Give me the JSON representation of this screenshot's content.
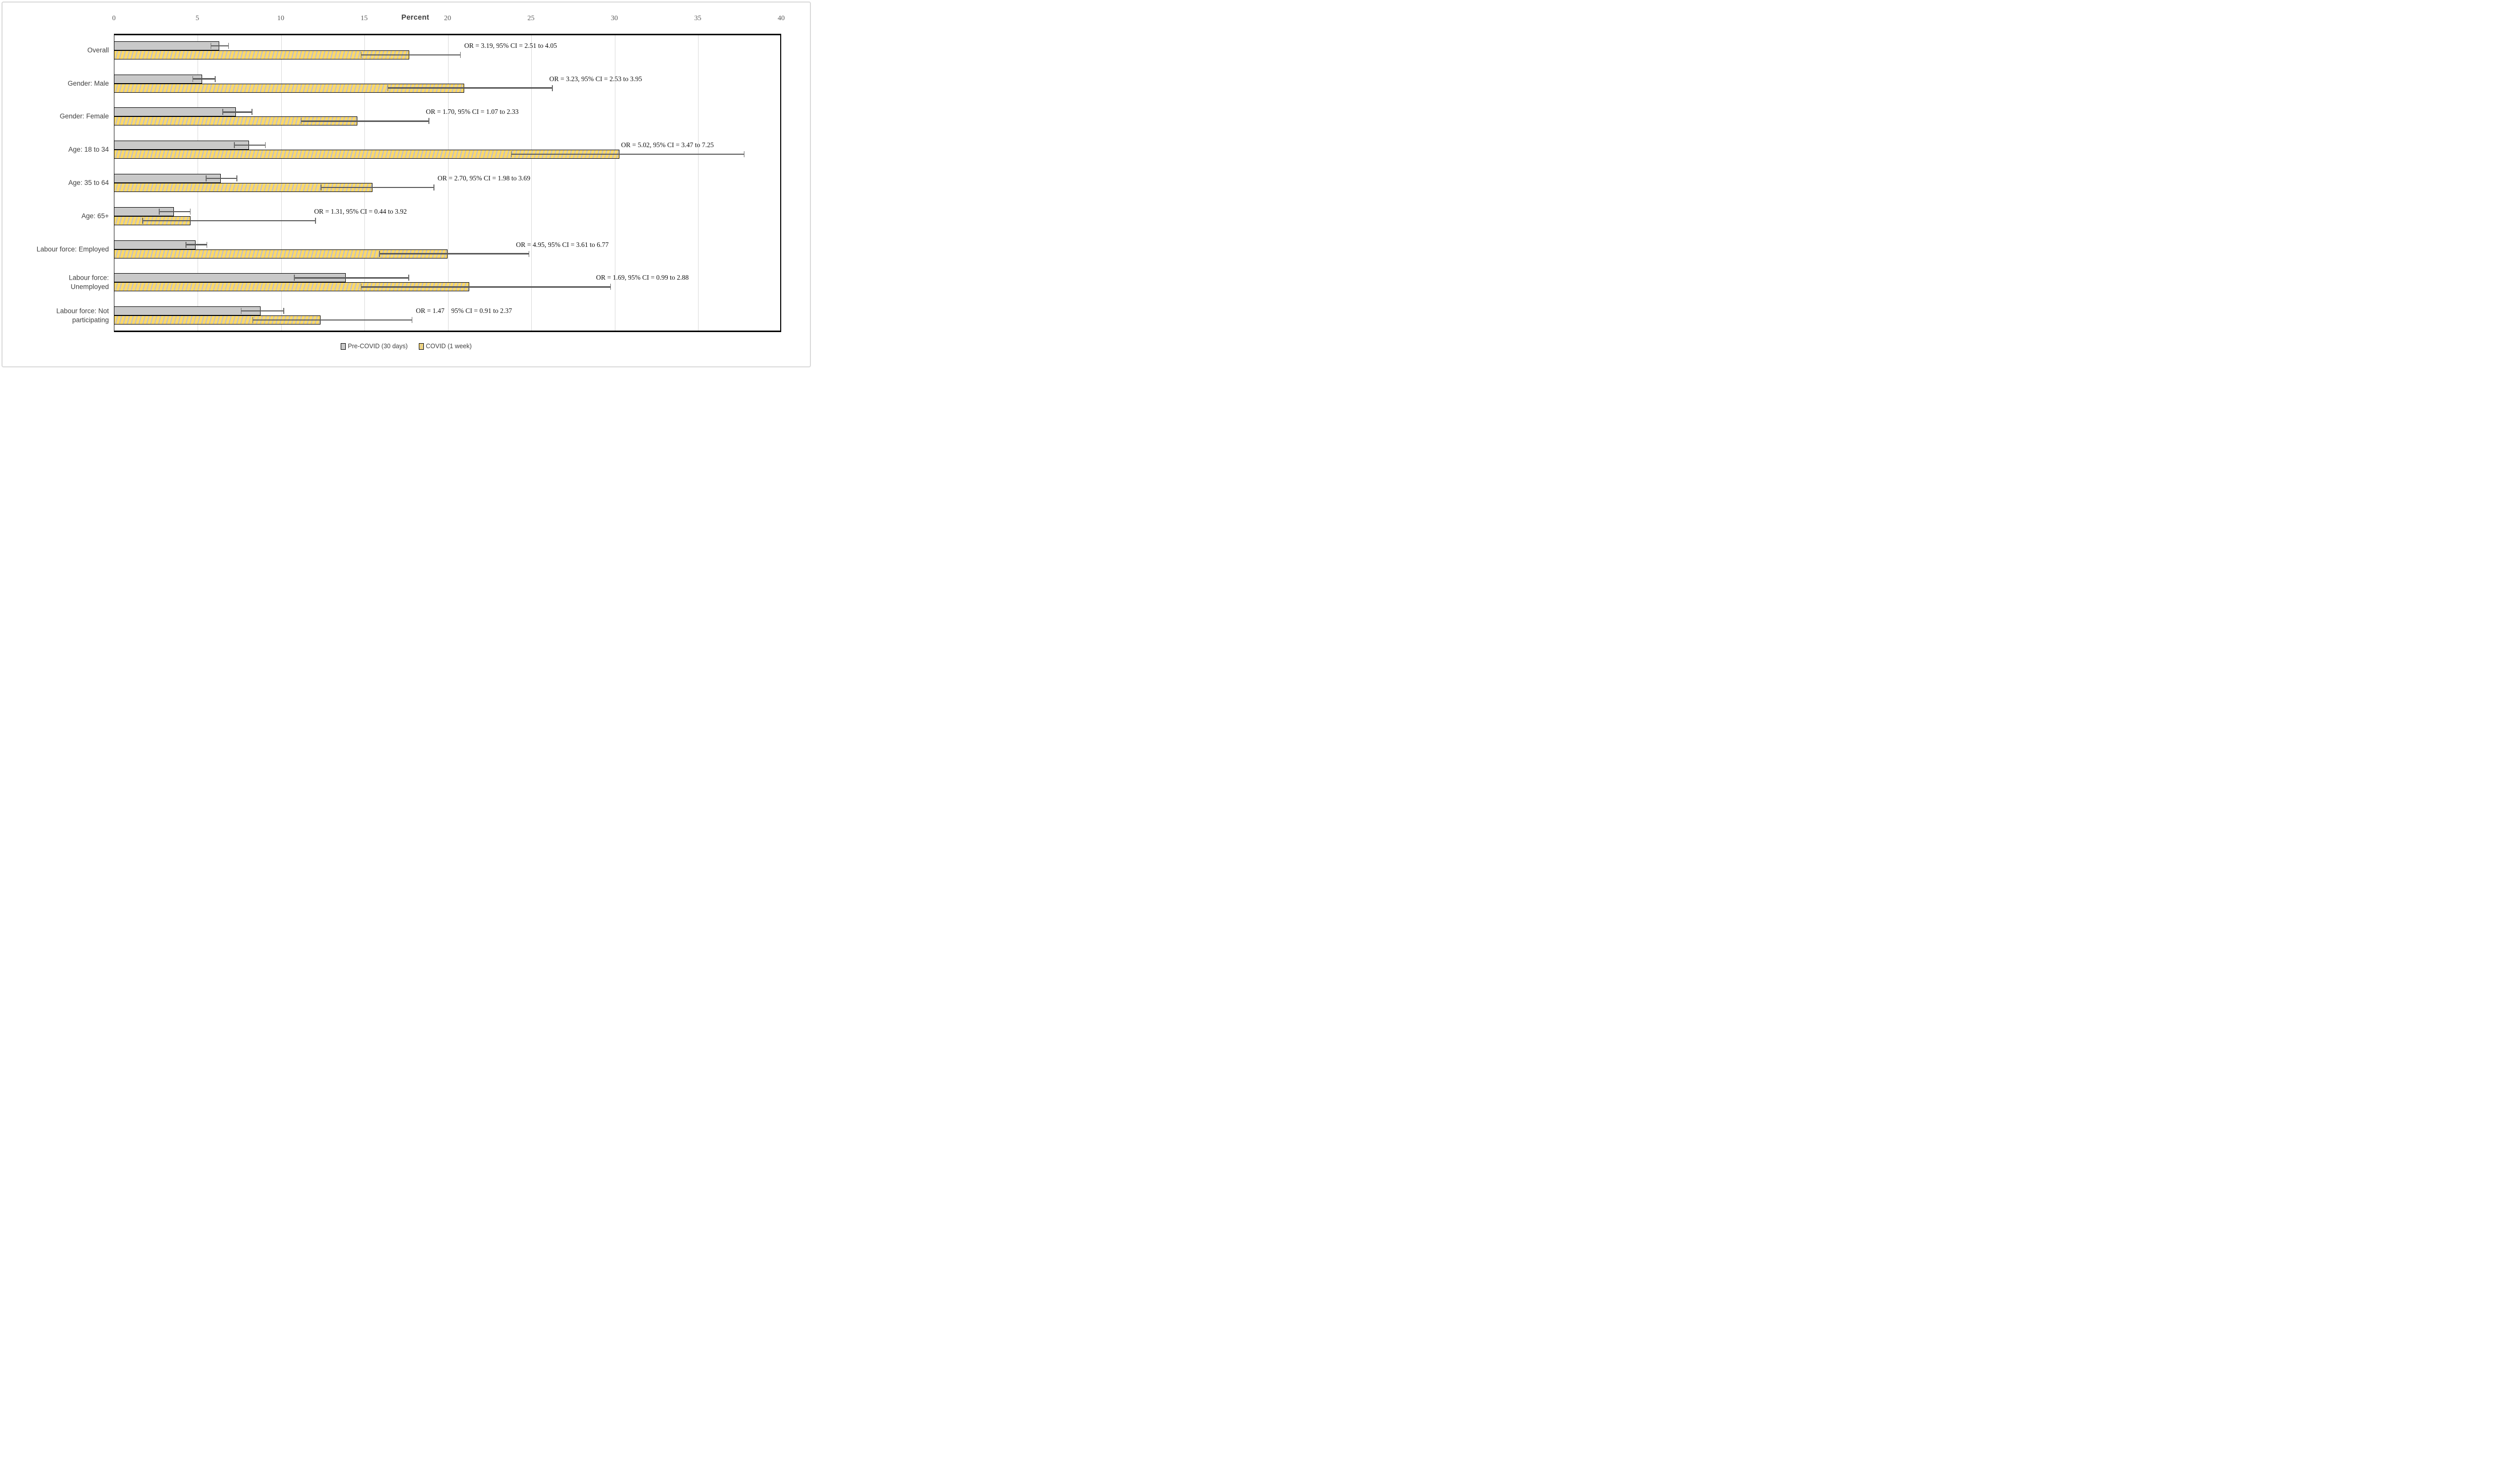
{
  "figure": {
    "axis_title": "Percent"
  },
  "legend": [
    {
      "label": "Pre-COVID (30 days)",
      "series": "precovid",
      "swatch_color": "#c9c9c9"
    },
    {
      "label": "COVID (1 week)",
      "series": "covid",
      "swatch_color": "#ffd966"
    }
  ],
  "colors": {
    "precovid_fill": "#c9c9c9",
    "covid_fill": "#ffd966",
    "covid_hatch": "#c2c2c2",
    "bar_border": "#000000",
    "error_bar": "#595959",
    "gridline": "#d9d9d9",
    "tick_text": "#595959",
    "label_text": "#404040"
  },
  "chart_data": {
    "type": "bar",
    "orientation": "horizontal",
    "xlabel": "Percent",
    "xlim": [
      0,
      40
    ],
    "ticks": [
      0,
      5,
      10,
      15,
      20,
      25,
      30,
      35,
      40
    ],
    "grid": true,
    "legend_position": "bottom",
    "categories": [
      "Overall",
      "Gender: Male",
      "Gender: Female",
      "Age: 18 to 34",
      "Age: 35 to 64",
      "Age: 65+",
      "Labour force: Employed",
      "Labour force: Unemployed",
      "Labour force: Not participating"
    ],
    "category_labels_display": [
      "Overall",
      "Gender: Male",
      "Gender: Female",
      "Age: 18 to 34",
      "Age: 35 to 64",
      "Age: 65+",
      "Labour force: Employed",
      "Labour force:\nUnemployed",
      "Labour force: Not\nparticipating"
    ],
    "series": [
      {
        "name": "Pre-COVID (30 days)",
        "values": [
          6.3,
          5.3,
          7.3,
          8.1,
          6.4,
          3.6,
          4.9,
          13.9,
          8.8
        ],
        "ci_low": [
          5.8,
          4.7,
          6.5,
          7.2,
          5.5,
          2.7,
          4.3,
          10.8,
          7.6
        ],
        "ci_high": [
          6.9,
          6.1,
          8.3,
          9.1,
          7.4,
          4.6,
          5.6,
          17.7,
          10.2
        ]
      },
      {
        "name": "COVID (1 week)",
        "values": [
          17.7,
          21.0,
          14.6,
          30.3,
          15.5,
          4.6,
          20.0,
          21.3,
          12.4
        ],
        "ci_low": [
          14.8,
          16.4,
          11.2,
          23.8,
          12.4,
          1.7,
          15.9,
          14.8,
          8.3
        ],
        "ci_high": [
          20.8,
          26.3,
          18.9,
          37.8,
          19.2,
          12.1,
          24.9,
          29.8,
          17.9
        ]
      }
    ],
    "annotations": [
      {
        "text": "OR = 3.19, 95% CI = 2.51 to 4.05",
        "x": 21.0
      },
      {
        "text": "OR = 3.23, 95% CI = 2.53 to 3.95",
        "x": 26.1
      },
      {
        "text": "OR = 1.70, 95% CI = 1.07 to 2.33",
        "x": 18.7
      },
      {
        "text": "OR = 5.02, 95% CI = 3.47 to 7.25",
        "x": 30.4
      },
      {
        "text": "OR = 2.70, 95% CI = 1.98 to 3.69",
        "x": 19.4
      },
      {
        "text": "OR = 1.31, 95% CI = 0.44 to 3.92",
        "x": 12.0
      },
      {
        "text": "OR = 4.95, 95% CI = 3.61 to 6.77",
        "x": 24.1
      },
      {
        "text": "OR = 1.69, 95% CI = 0.99 to 2.88",
        "x": 28.9
      },
      {
        "text": "OR = 1.47    95% CI = 0.91 to 2.37",
        "x": 18.1
      }
    ]
  }
}
